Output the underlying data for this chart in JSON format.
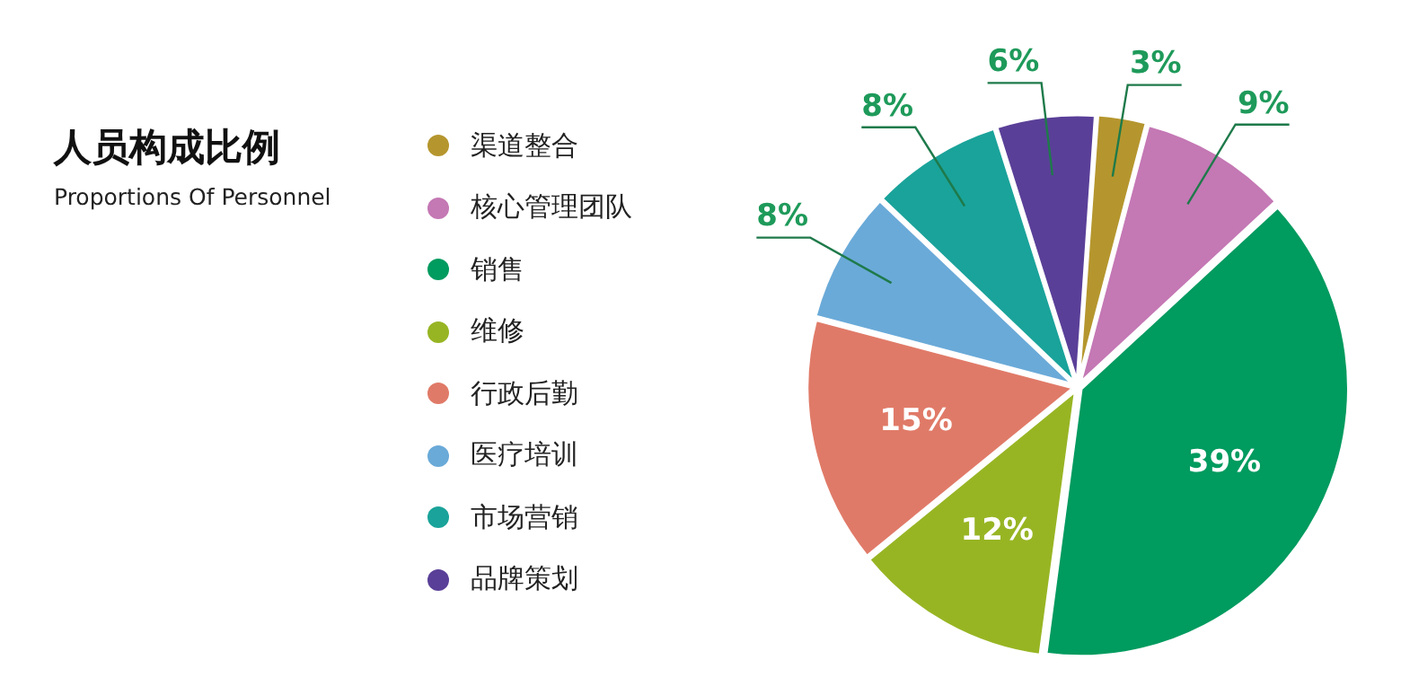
{
  "chart_data": {
    "type": "pie",
    "title": "人员构成比例",
    "subtitle": "Proportions Of Personnel",
    "categories": [
      "渠道整合",
      "核心管理团队",
      "销售",
      "维修",
      "行政后勤",
      "医疗培训",
      "市场营销",
      "品牌策划"
    ],
    "values": [
      3,
      9,
      39,
      12,
      15,
      8,
      8,
      6
    ],
    "colors": [
      "#b5962e",
      "#c478b4",
      "#009b5f",
      "#97b523",
      "#e07a68",
      "#6aaad8",
      "#1aa39a",
      "#5a3f98"
    ],
    "value_labels": [
      "3%",
      "9%",
      "39%",
      "12%",
      "15%",
      "8%",
      "8%",
      "6%"
    ],
    "legend": "left"
  }
}
